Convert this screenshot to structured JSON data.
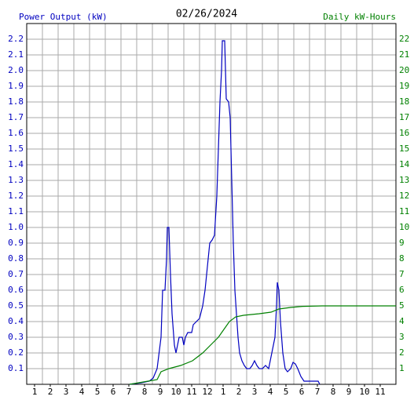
{
  "chart_data": {
    "type": "line",
    "title": "02/26/2024",
    "xlim": [
      0.5,
      24
    ],
    "xticks": [
      1,
      2,
      3,
      4,
      5,
      6,
      7,
      8,
      9,
      10,
      11,
      12,
      {
        "value": 13,
        "label": "1"
      },
      {
        "value": 14,
        "label": "2"
      },
      {
        "value": 15,
        "label": "3"
      },
      {
        "value": 16,
        "label": "4"
      },
      {
        "value": 17,
        "label": "5"
      },
      {
        "value": 18,
        "label": "6"
      },
      {
        "value": 19,
        "label": "7"
      },
      {
        "value": 20,
        "label": "8"
      },
      {
        "value": 21,
        "label": "9"
      },
      {
        "value": 22,
        "label": "10"
      },
      {
        "value": 23,
        "label": "11"
      }
    ],
    "ylim": [
      0,
      2.3
    ],
    "yticks": [
      0.1,
      0.2,
      0.3,
      0.4,
      0.5,
      0.6,
      0.7,
      0.8,
      0.9,
      {
        "value": 1,
        "label": "1.0"
      },
      1.1,
      1.2,
      1.3,
      1.4,
      1.5,
      1.6,
      1.7,
      1.8,
      1.9,
      {
        "value": 2,
        "label": "2.0"
      },
      2.1,
      2.2
    ],
    "y2lim": [
      0,
      23
    ],
    "y2ticks": [
      1,
      2,
      3,
      4,
      5,
      6,
      7,
      8,
      9,
      10,
      11,
      12,
      13,
      14,
      15,
      16,
      17,
      18,
      19,
      20,
      21,
      22
    ],
    "grid": true,
    "series": [
      {
        "name": "Power Output (kW)",
        "color": "#0000c0",
        "x": [
          7.05,
          7.8,
          8.3,
          8.55,
          8.8,
          9.05,
          9.15,
          9.3,
          9.4,
          9.45,
          9.55,
          9.65,
          9.75,
          9.9,
          10,
          10.1,
          10.2,
          10.4,
          10.5,
          10.6,
          10.75,
          11,
          11.1,
          11.3,
          11.5,
          11.7,
          11.85,
          12,
          12.15,
          12.3,
          12.45,
          12.6,
          12.7,
          12.8,
          12.9,
          12.95,
          13.1,
          13.2,
          13.35,
          13.45,
          13.55,
          13.65,
          13.75,
          13.85,
          13.95,
          14.05,
          14.2,
          14.35,
          14.5,
          14.7,
          14.85,
          15,
          15.15,
          15.3,
          15.5,
          15.7,
          15.9,
          16.1,
          16.3,
          16.4,
          16.45,
          16.55,
          16.65,
          16.8,
          16.95,
          17.1,
          17.3,
          17.45,
          17.6,
          17.75,
          17.95,
          18.15,
          18.4,
          18.8,
          19.05,
          19.15
        ],
        "values": [
          0,
          0.01,
          0.02,
          0.04,
          0.1,
          0.3,
          0.6,
          0.6,
          0.8,
          1.0,
          1.0,
          0.7,
          0.45,
          0.25,
          0.2,
          0.25,
          0.3,
          0.3,
          0.25,
          0.3,
          0.33,
          0.33,
          0.38,
          0.4,
          0.42,
          0.5,
          0.6,
          0.75,
          0.9,
          0.92,
          0.95,
          1.2,
          1.5,
          1.8,
          2.0,
          2.19,
          2.19,
          1.82,
          1.8,
          1.7,
          1.3,
          0.9,
          0.6,
          0.45,
          0.3,
          0.2,
          0.15,
          0.12,
          0.1,
          0.1,
          0.12,
          0.15,
          0.12,
          0.1,
          0.1,
          0.12,
          0.1,
          0.2,
          0.3,
          0.5,
          0.65,
          0.6,
          0.4,
          0.2,
          0.1,
          0.08,
          0.1,
          0.14,
          0.13,
          0.1,
          0.05,
          0.02,
          0.02,
          0.02,
          0.02,
          0
        ]
      },
      {
        "name": "Daily kW-Hours",
        "color": "#008000",
        "axis": "y2",
        "x": [
          7.05,
          8.8,
          9.05,
          9.55,
          10.3,
          11.05,
          11.7,
          12.2,
          12.7,
          13.05,
          13.4,
          13.8,
          14.3,
          15.3,
          16.05,
          16.55,
          17.3,
          18.05,
          19.3,
          24
        ],
        "values": [
          0,
          0.3,
          0.8,
          1.0,
          1.2,
          1.5,
          2.0,
          2.5,
          3.0,
          3.5,
          4.0,
          4.3,
          4.4,
          4.5,
          4.6,
          4.8,
          4.9,
          4.97,
          5.0,
          5.0
        ]
      }
    ]
  }
}
